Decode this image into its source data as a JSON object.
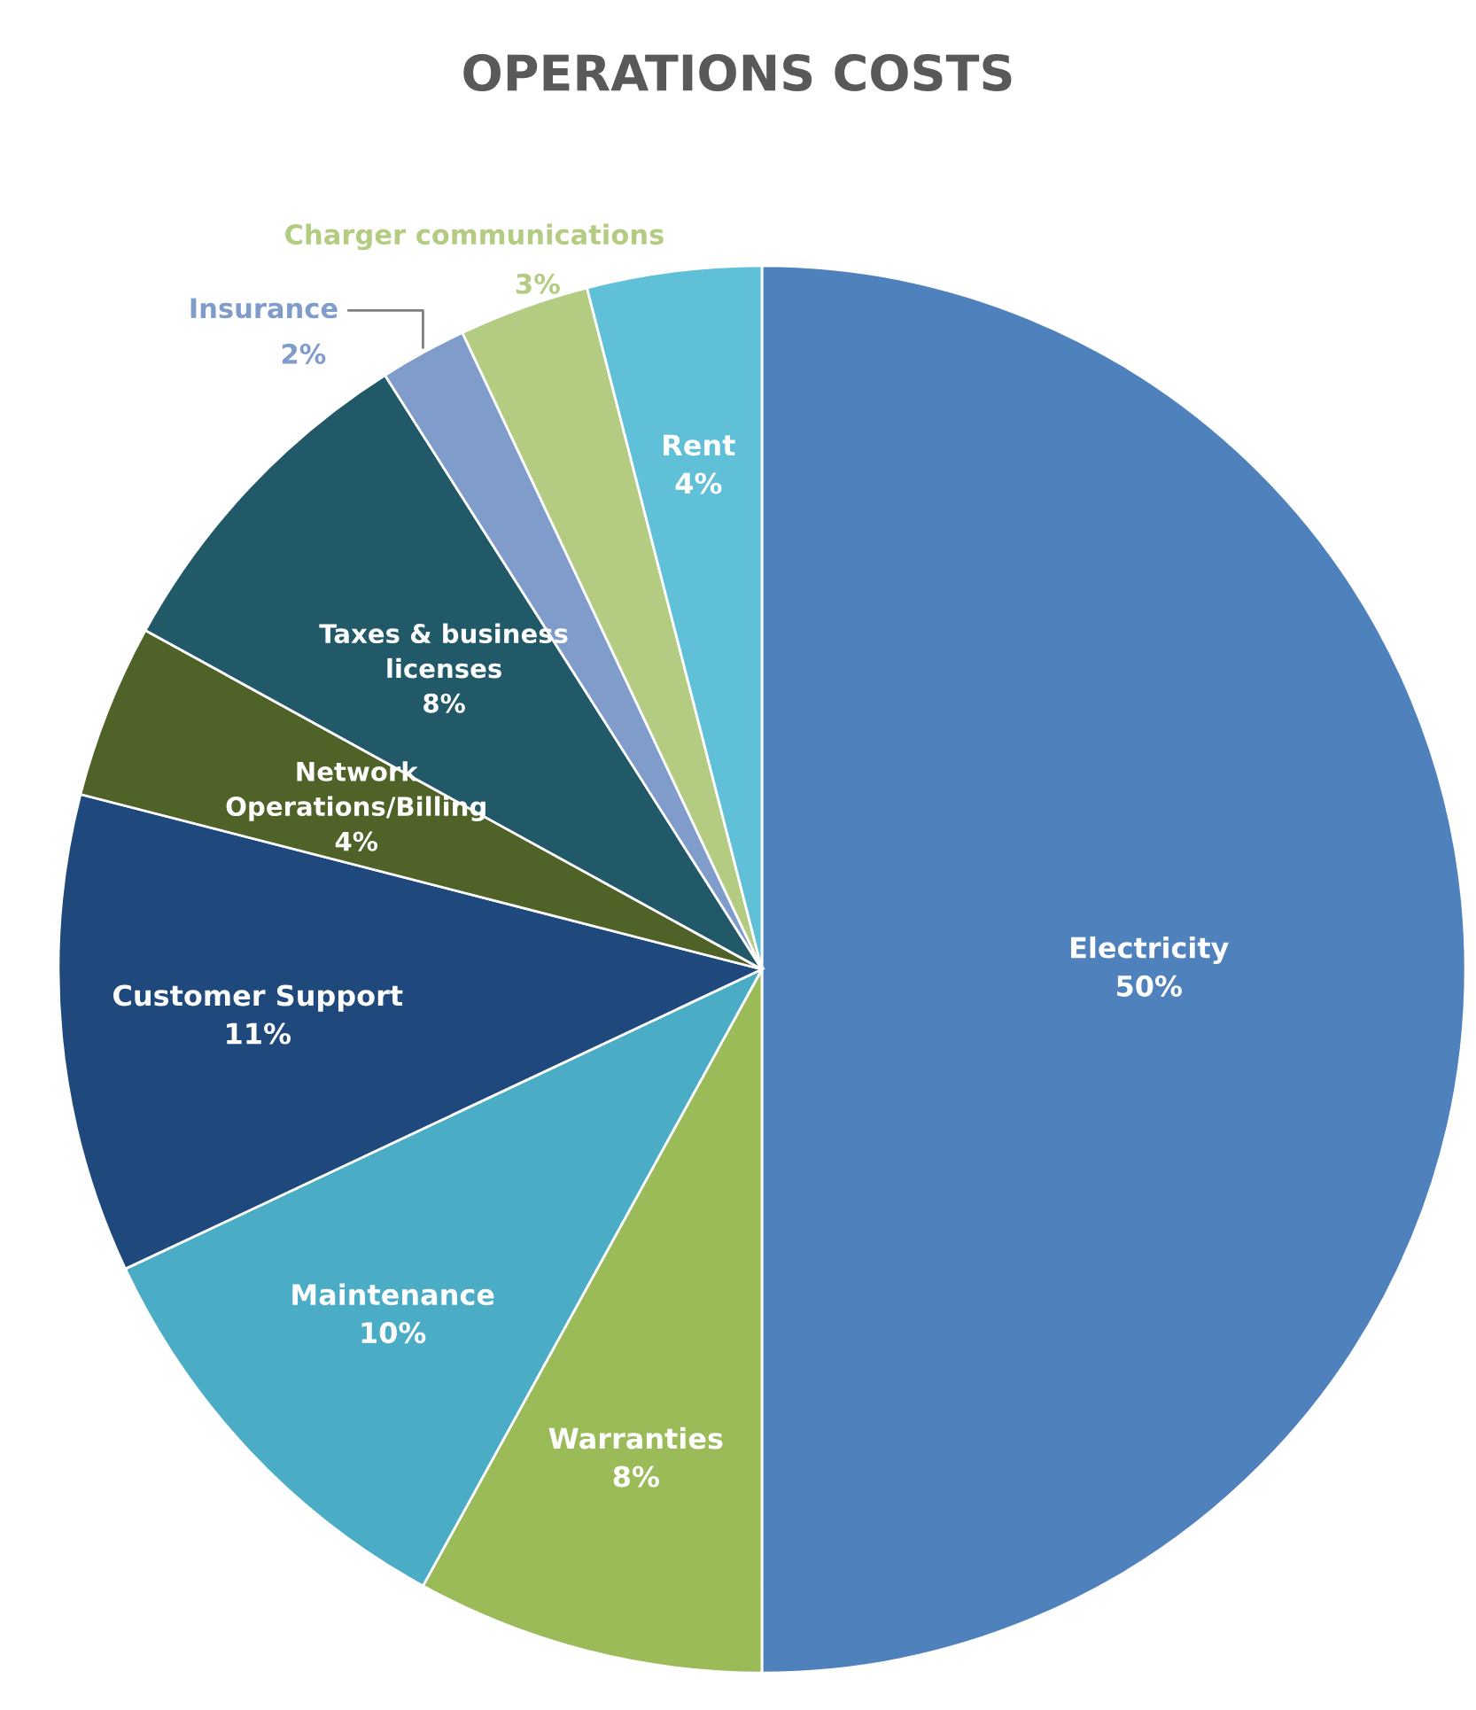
{
  "chart_data": {
    "type": "pie",
    "title": "OPERATIONS COSTS",
    "categories": [
      "Electricity",
      "Warranties",
      "Maintenance",
      "Customer Support",
      "Network\nOperations/Billing",
      "Taxes & business\nlicenses",
      "Insurance",
      "Charger communications",
      "Rent"
    ],
    "values": [
      50,
      8,
      10,
      11,
      4,
      8,
      2,
      3,
      4
    ],
    "colors": [
      "#4f81bd",
      "#9bbb59",
      "#4bacc6",
      "#1f497d",
      "#4f6228",
      "#215968",
      "#7f9ccb",
      "#b3cc82",
      "#5fc0d8"
    ],
    "value_labels": [
      "50%",
      "8%",
      "10%",
      "11%",
      "4%",
      "8%",
      "2%",
      "3%",
      "4%"
    ]
  }
}
